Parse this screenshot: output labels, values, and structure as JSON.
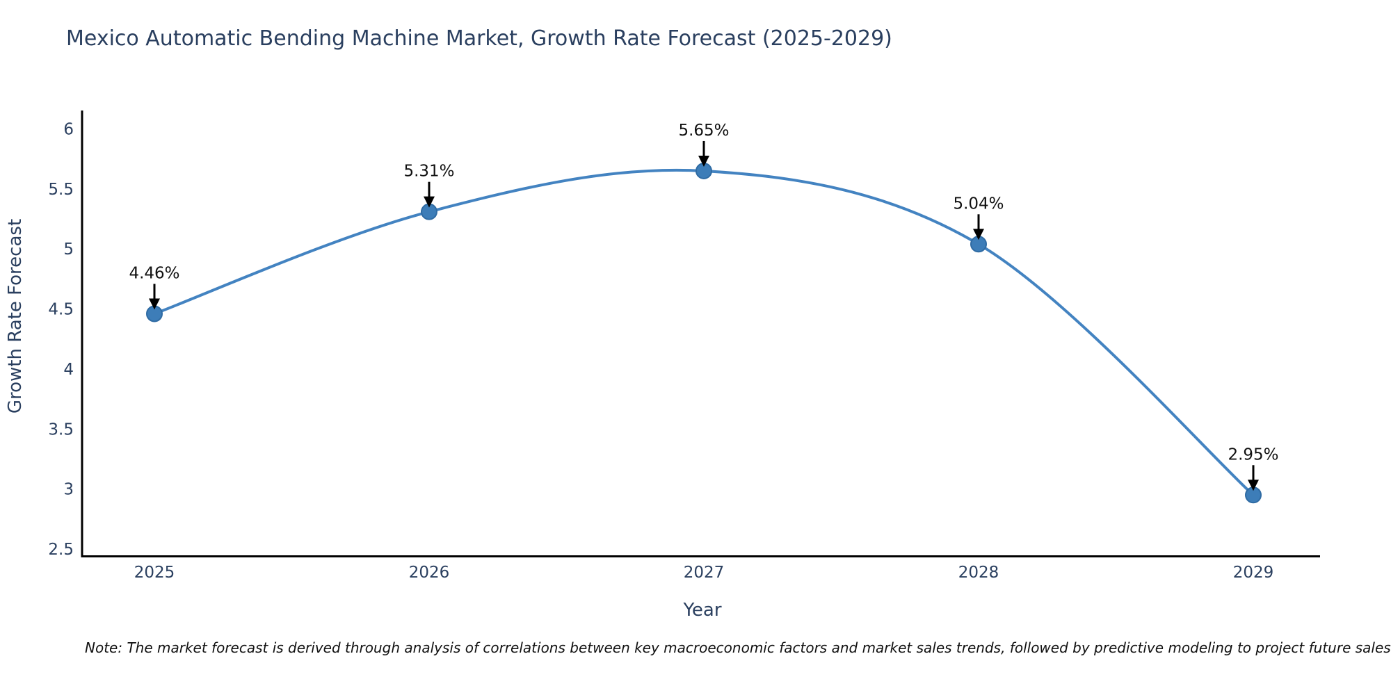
{
  "title": "Mexico Automatic Bending Machine Market, Growth Rate Forecast (2025-2029)",
  "note": "Note: The market forecast is derived through analysis of correlations between key macroeconomic factors and market sales trends, followed by predictive modeling to project future sales",
  "chart_data": {
    "type": "line",
    "title": "Mexico Automatic Bending Machine Market, Growth Rate Forecast (2025-2029)",
    "x": [
      "2025",
      "2026",
      "2027",
      "2028",
      "2029"
    ],
    "series": [
      {
        "name": "Growth Rate Forecast",
        "values": [
          4.46,
          5.31,
          5.65,
          5.04,
          2.95
        ],
        "point_labels": [
          "4.46%",
          "5.31%",
          "5.65%",
          "5.04%",
          "2.95%"
        ]
      }
    ],
    "xlabel": "Year",
    "ylabel": "Growth Rate Forecast",
    "ylim": [
      2.5,
      6
    ],
    "yticks": [
      2.5,
      3,
      3.5,
      4,
      4.5,
      5,
      5.5,
      6
    ],
    "line_shape": "spline",
    "grid": false,
    "legend": "none",
    "colors": {
      "line": "#4383c1",
      "marker_fill": "#3d7db8",
      "marker_edge": "#2f6ba3",
      "axis_line": "#000000",
      "tick_text": "#2a3f5f",
      "axis_title_text": "#2a3f5f",
      "annotation_text": "#111111",
      "arrow": "#000000",
      "title_text": "#2a3f5f"
    }
  }
}
